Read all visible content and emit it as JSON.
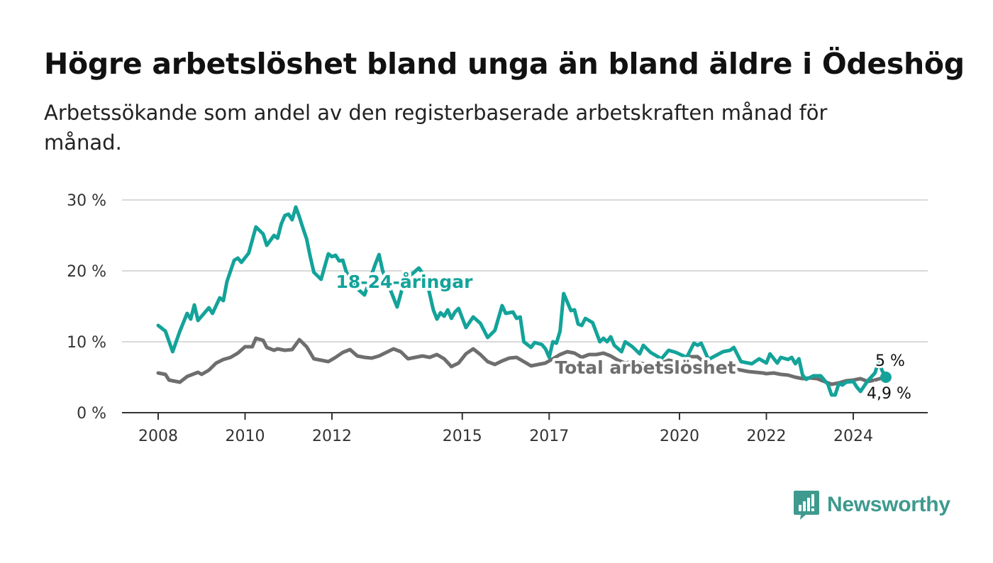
{
  "header": {
    "title": "Högre arbetslöshet bland unga än bland äldre i Ödeshög",
    "subtitle": "Arbetssökande som andel av den registerbaserade arbetskraften månad för månad."
  },
  "brand": {
    "name": "Newsworthy",
    "color": "#3e9a8e",
    "icon": "bar-chart-icon"
  },
  "chart_data": {
    "type": "line",
    "title": "Högre arbetslöshet bland unga än bland äldre i Ödeshög",
    "subtitle": "Arbetssökande som andel av den registerbaserade arbetskraften månad för månad.",
    "x_range": [
      "2008-01",
      "2024-12"
    ],
    "ylim": [
      0,
      30
    ],
    "y_ticks": [
      0,
      10,
      20,
      30
    ],
    "y_tick_labels": [
      "0 %",
      "10 %",
      "20 %",
      "30 %"
    ],
    "x_ticks": [
      {
        "label": "2008",
        "date": "2008-01"
      },
      {
        "label": "2010",
        "date": "2010-01"
      },
      {
        "label": "2012",
        "date": "2012-01"
      },
      {
        "label": "2015",
        "date": "2015-01"
      },
      {
        "label": "2017",
        "date": "2017-01"
      },
      {
        "label": "2020",
        "date": "2020-01"
      },
      {
        "label": "2022",
        "date": "2022-01"
      },
      {
        "label": "2024",
        "date": "2024-01"
      }
    ],
    "grid": true,
    "series": [
      {
        "name": "18-24-åringar",
        "color": "#13a39a",
        "end_label": "5 %",
        "points": [
          [
            "2008-01",
            12.3
          ],
          [
            "2008-03",
            11.5
          ],
          [
            "2008-05",
            8.6
          ],
          [
            "2008-07",
            11.5
          ],
          [
            "2008-09",
            14.0
          ],
          [
            "2008-10",
            13.2
          ],
          [
            "2008-11",
            15.2
          ],
          [
            "2008-12",
            13.0
          ],
          [
            "2009-03",
            14.8
          ],
          [
            "2009-04",
            14.0
          ],
          [
            "2009-06",
            16.2
          ],
          [
            "2009-07",
            15.8
          ],
          [
            "2009-08",
            18.5
          ],
          [
            "2009-10",
            21.5
          ],
          [
            "2009-11",
            21.8
          ],
          [
            "2009-12",
            21.2
          ],
          [
            "2010-02",
            22.5
          ],
          [
            "2010-04",
            26.2
          ],
          [
            "2010-06",
            25.2
          ],
          [
            "2010-07",
            23.6
          ],
          [
            "2010-09",
            25.0
          ],
          [
            "2010-10",
            24.6
          ],
          [
            "2010-11",
            26.6
          ],
          [
            "2010-12",
            27.8
          ],
          [
            "2011-01",
            28.0
          ],
          [
            "2011-02",
            27.2
          ],
          [
            "2011-03",
            29.0
          ],
          [
            "2011-04",
            27.6
          ],
          [
            "2011-05",
            26.0
          ],
          [
            "2011-06",
            24.5
          ],
          [
            "2011-07",
            22.0
          ],
          [
            "2011-08",
            19.8
          ],
          [
            "2011-10",
            18.8
          ],
          [
            "2011-12",
            22.4
          ],
          [
            "2012-01",
            22.0
          ],
          [
            "2012-02",
            22.2
          ],
          [
            "2012-03",
            21.4
          ],
          [
            "2012-04",
            21.5
          ],
          [
            "2012-05",
            19.8
          ],
          [
            "2012-08",
            17.5
          ],
          [
            "2012-10",
            16.6
          ],
          [
            "2013-01",
            21.0
          ],
          [
            "2013-02",
            22.3
          ],
          [
            "2013-03",
            20.0
          ],
          [
            "2013-05",
            17.5
          ],
          [
            "2013-07",
            14.9
          ],
          [
            "2013-09",
            18.6
          ],
          [
            "2014-01",
            20.4
          ],
          [
            "2014-03",
            19.0
          ],
          [
            "2014-05",
            14.5
          ],
          [
            "2014-06",
            13.2
          ],
          [
            "2014-07",
            14.1
          ],
          [
            "2014-08",
            13.6
          ],
          [
            "2014-09",
            14.5
          ],
          [
            "2014-10",
            13.3
          ],
          [
            "2014-11",
            14.2
          ],
          [
            "2014-12",
            14.7
          ],
          [
            "2015-02",
            12.0
          ],
          [
            "2015-04",
            13.5
          ],
          [
            "2015-06",
            12.6
          ],
          [
            "2015-08",
            10.6
          ],
          [
            "2015-10",
            11.6
          ],
          [
            "2015-12",
            15.1
          ],
          [
            "2016-01",
            14.0
          ],
          [
            "2016-03",
            14.2
          ],
          [
            "2016-04",
            13.3
          ],
          [
            "2016-05",
            13.5
          ],
          [
            "2016-06",
            10.0
          ],
          [
            "2016-08",
            9.2
          ],
          [
            "2016-09",
            9.9
          ],
          [
            "2016-11",
            9.6
          ],
          [
            "2016-12",
            9.0
          ],
          [
            "2017-01",
            7.8
          ],
          [
            "2017-02",
            10.0
          ],
          [
            "2017-03",
            9.8
          ],
          [
            "2017-04",
            11.5
          ],
          [
            "2017-05",
            16.8
          ],
          [
            "2017-07",
            14.4
          ],
          [
            "2017-08",
            14.5
          ],
          [
            "2017-09",
            12.5
          ],
          [
            "2017-10",
            12.3
          ],
          [
            "2017-11",
            13.3
          ],
          [
            "2018-01",
            12.7
          ],
          [
            "2018-03",
            10.0
          ],
          [
            "2018-04",
            10.5
          ],
          [
            "2018-05",
            10.0
          ],
          [
            "2018-06",
            10.7
          ],
          [
            "2018-07",
            9.5
          ],
          [
            "2018-09",
            8.6
          ],
          [
            "2018-10",
            10.0
          ],
          [
            "2018-12",
            9.3
          ],
          [
            "2019-02",
            8.3
          ],
          [
            "2019-03",
            9.5
          ],
          [
            "2019-05",
            8.5
          ],
          [
            "2019-08",
            7.6
          ],
          [
            "2019-10",
            8.8
          ],
          [
            "2019-12",
            8.5
          ],
          [
            "2020-03",
            7.8
          ],
          [
            "2020-05",
            9.8
          ],
          [
            "2020-06",
            9.5
          ],
          [
            "2020-07",
            9.8
          ],
          [
            "2020-09",
            7.5
          ],
          [
            "2021-01",
            8.6
          ],
          [
            "2021-03",
            8.8
          ],
          [
            "2021-04",
            9.2
          ],
          [
            "2021-06",
            7.2
          ],
          [
            "2021-09",
            6.9
          ],
          [
            "2021-11",
            7.6
          ],
          [
            "2022-01",
            7.0
          ],
          [
            "2022-02",
            8.3
          ],
          [
            "2022-04",
            7.0
          ],
          [
            "2022-05",
            7.8
          ],
          [
            "2022-07",
            7.5
          ],
          [
            "2022-08",
            7.8
          ],
          [
            "2022-09",
            6.9
          ],
          [
            "2022-10",
            7.6
          ],
          [
            "2022-11",
            5.3
          ],
          [
            "2022-12",
            4.7
          ],
          [
            "2023-02",
            5.2
          ],
          [
            "2023-04",
            5.2
          ],
          [
            "2023-06",
            4.0
          ],
          [
            "2023-07",
            2.5
          ],
          [
            "2023-08",
            2.5
          ],
          [
            "2023-09",
            4.1
          ],
          [
            "2023-10",
            3.9
          ],
          [
            "2023-11",
            4.3
          ],
          [
            "2024-01",
            4.4
          ],
          [
            "2024-02",
            3.6
          ],
          [
            "2024-03",
            3.0
          ],
          [
            "2024-05",
            4.5
          ],
          [
            "2024-07",
            5.6
          ],
          [
            "2024-08",
            7.2
          ],
          [
            "2024-09",
            5.9
          ],
          [
            "2024-10",
            5.0
          ]
        ]
      },
      {
        "name": "Total arbetslöshet",
        "color": "#6e6e6e",
        "end_label": "4,9 %",
        "points": [
          [
            "2008-01",
            5.6
          ],
          [
            "2008-03",
            5.4
          ],
          [
            "2008-04",
            4.6
          ],
          [
            "2008-07",
            4.3
          ],
          [
            "2008-09",
            5.1
          ],
          [
            "2008-12",
            5.7
          ],
          [
            "2009-01",
            5.4
          ],
          [
            "2009-03",
            6.0
          ],
          [
            "2009-05",
            7.0
          ],
          [
            "2009-07",
            7.5
          ],
          [
            "2009-09",
            7.8
          ],
          [
            "2009-11",
            8.4
          ],
          [
            "2010-01",
            9.3
          ],
          [
            "2010-03",
            9.3
          ],
          [
            "2010-04",
            10.5
          ],
          [
            "2010-06",
            10.2
          ],
          [
            "2010-07",
            9.2
          ],
          [
            "2010-09",
            8.8
          ],
          [
            "2010-10",
            9.0
          ],
          [
            "2010-12",
            8.8
          ],
          [
            "2011-02",
            8.9
          ],
          [
            "2011-04",
            10.3
          ],
          [
            "2011-06",
            9.3
          ],
          [
            "2011-08",
            7.6
          ],
          [
            "2011-10",
            7.4
          ],
          [
            "2011-12",
            7.2
          ],
          [
            "2012-02",
            7.8
          ],
          [
            "2012-04",
            8.5
          ],
          [
            "2012-06",
            8.9
          ],
          [
            "2012-08",
            8.0
          ],
          [
            "2012-10",
            7.8
          ],
          [
            "2012-12",
            7.7
          ],
          [
            "2013-02",
            8.0
          ],
          [
            "2013-04",
            8.5
          ],
          [
            "2013-06",
            9.0
          ],
          [
            "2013-08",
            8.6
          ],
          [
            "2013-10",
            7.6
          ],
          [
            "2013-12",
            7.8
          ],
          [
            "2014-02",
            8.0
          ],
          [
            "2014-04",
            7.8
          ],
          [
            "2014-06",
            8.2
          ],
          [
            "2014-08",
            7.6
          ],
          [
            "2014-10",
            6.5
          ],
          [
            "2014-12",
            7.0
          ],
          [
            "2015-02",
            8.3
          ],
          [
            "2015-04",
            9.0
          ],
          [
            "2015-06",
            8.2
          ],
          [
            "2015-08",
            7.2
          ],
          [
            "2015-10",
            6.8
          ],
          [
            "2015-12",
            7.3
          ],
          [
            "2016-02",
            7.7
          ],
          [
            "2016-04",
            7.8
          ],
          [
            "2016-06",
            7.2
          ],
          [
            "2016-08",
            6.6
          ],
          [
            "2016-10",
            6.8
          ],
          [
            "2016-12",
            7.0
          ],
          [
            "2017-02",
            7.6
          ],
          [
            "2017-04",
            8.2
          ],
          [
            "2017-06",
            8.6
          ],
          [
            "2017-08",
            8.4
          ],
          [
            "2017-10",
            7.8
          ],
          [
            "2017-12",
            8.2
          ],
          [
            "2018-02",
            8.2
          ],
          [
            "2018-04",
            8.4
          ],
          [
            "2018-06",
            8.0
          ],
          [
            "2018-08",
            7.4
          ],
          [
            "2018-10",
            7.0
          ],
          [
            "2018-12",
            7.2
          ],
          [
            "2019-02",
            7.0
          ],
          [
            "2019-04",
            6.8
          ],
          [
            "2019-06",
            6.7
          ],
          [
            "2019-08",
            7.0
          ],
          [
            "2019-10",
            7.4
          ],
          [
            "2019-12",
            7.2
          ],
          [
            "2020-02",
            7.4
          ],
          [
            "2020-04",
            7.9
          ],
          [
            "2020-06",
            7.9
          ],
          [
            "2020-08",
            7.0
          ],
          [
            "2020-10",
            6.6
          ],
          [
            "2020-12",
            6.4
          ],
          [
            "2021-02",
            6.3
          ],
          [
            "2021-04",
            6.2
          ],
          [
            "2021-06",
            6.0
          ],
          [
            "2021-08",
            5.8
          ],
          [
            "2021-10",
            5.7
          ],
          [
            "2021-12",
            5.6
          ],
          [
            "2022-01",
            5.5
          ],
          [
            "2022-03",
            5.6
          ],
          [
            "2022-05",
            5.4
          ],
          [
            "2022-07",
            5.3
          ],
          [
            "2022-09",
            5.0
          ],
          [
            "2022-11",
            4.8
          ],
          [
            "2023-01",
            4.9
          ],
          [
            "2023-03",
            4.8
          ],
          [
            "2023-05",
            4.4
          ],
          [
            "2023-07",
            4.0
          ],
          [
            "2023-09",
            4.2
          ],
          [
            "2023-11",
            4.5
          ],
          [
            "2024-01",
            4.6
          ],
          [
            "2024-03",
            4.8
          ],
          [
            "2024-05",
            4.4
          ],
          [
            "2024-07",
            4.6
          ],
          [
            "2024-09",
            4.9
          ],
          [
            "2024-10",
            4.9
          ]
        ]
      }
    ]
  }
}
